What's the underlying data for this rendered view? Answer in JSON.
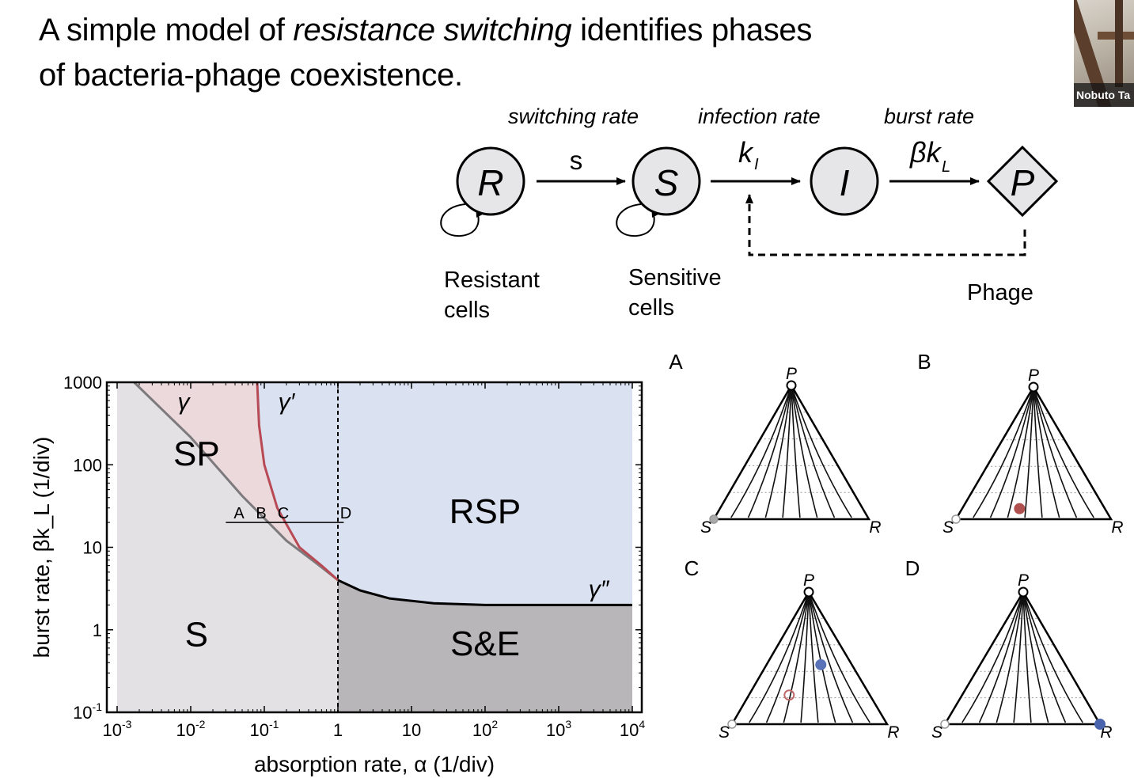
{
  "slide": {
    "title_part1": "A simple model of ",
    "title_italic": "resistance switching",
    "title_part2": " identifies phases",
    "title_line2": "of bacteria-phage coexistence."
  },
  "video": {
    "participant_name": "Nobuto Ta"
  },
  "model": {
    "rate_labels": [
      "switching rate",
      "infection rate",
      "burst rate"
    ],
    "nodes": [
      "R",
      "S",
      "I",
      "P"
    ],
    "arrow_symbols": [
      "s",
      "k",
      "I",
      "βk",
      "L"
    ],
    "captions": {
      "resistant_line1": "Resistant",
      "resistant_line2": "cells",
      "sensitive_line1": "Sensitive",
      "sensitive_line2": "cells",
      "phage": "Phage"
    }
  },
  "chart_data": {
    "type": "area",
    "title": "",
    "xlabel": "absorption rate, α (1/div)",
    "ylabel": "burst rate, βk_L (1/div)",
    "xscale": "log",
    "yscale": "log",
    "xlim": [
      0.001,
      10000
    ],
    "ylim": [
      0.1,
      1000
    ],
    "x_ticks": [
      {
        "base": "10",
        "exp": "-3",
        "v": 0.001
      },
      {
        "base": "10",
        "exp": "-2",
        "v": 0.01
      },
      {
        "base": "10",
        "exp": "-1",
        "v": 0.1
      },
      {
        "base": "1",
        "exp": "",
        "v": 1
      },
      {
        "base": "10",
        "exp": "",
        "v": 10
      },
      {
        "base": "10",
        "exp": "2",
        "v": 100
      },
      {
        "base": "10",
        "exp": "3",
        "v": 1000
      },
      {
        "base": "10",
        "exp": "4",
        "v": 10000
      }
    ],
    "y_ticks": [
      {
        "base": "10",
        "exp": "-1",
        "v": 0.1
      },
      {
        "base": "1",
        "exp": "",
        "v": 1
      },
      {
        "base": "10",
        "exp": "",
        "v": 10
      },
      {
        "base": "100",
        "exp": "",
        "v": 100
      },
      {
        "base": "1000",
        "exp": "",
        "v": 1000
      }
    ],
    "regions": [
      {
        "label": "S",
        "color": "#e3e1e4"
      },
      {
        "label": "SP",
        "color": "#ecd9dc"
      },
      {
        "label": "RSP",
        "color": "#dae1f0"
      },
      {
        "label": "S&E",
        "color": "#b8b6b9"
      }
    ],
    "curves": [
      {
        "name": "γ",
        "color": "#7d7a7d",
        "points": [
          [
            0.0017,
            1000
          ],
          [
            0.01,
            215
          ],
          [
            0.05,
            42
          ],
          [
            0.2,
            12
          ],
          [
            0.5,
            6.5
          ],
          [
            1,
            4
          ]
        ]
      },
      {
        "name": "γ′",
        "color": "#b84a55",
        "points": [
          [
            0.08,
            1000
          ],
          [
            0.085,
            300
          ],
          [
            0.1,
            100
          ],
          [
            0.15,
            30
          ],
          [
            0.3,
            10
          ],
          [
            0.6,
            6
          ],
          [
            1,
            4
          ]
        ]
      },
      {
        "name": "γ″",
        "color": "#000000",
        "points": [
          [
            1,
            4
          ],
          [
            2,
            3
          ],
          [
            5,
            2.4
          ],
          [
            20,
            2.1
          ],
          [
            100,
            2
          ],
          [
            10000,
            2
          ]
        ]
      }
    ],
    "boundary_alpha": 1,
    "markers": [
      {
        "label": "A",
        "x": 0.05
      },
      {
        "label": "B",
        "x": 0.1
      },
      {
        "label": "C",
        "x": 0.2
      },
      {
        "label": "D",
        "x": 1
      }
    ],
    "marker_line": {
      "y": 20,
      "x_from": 0.03,
      "x_to": 1.2
    }
  },
  "triangles": {
    "vertex_labels": [
      "P",
      "S",
      "R"
    ],
    "panels": [
      "A",
      "B",
      "C",
      "D"
    ]
  }
}
